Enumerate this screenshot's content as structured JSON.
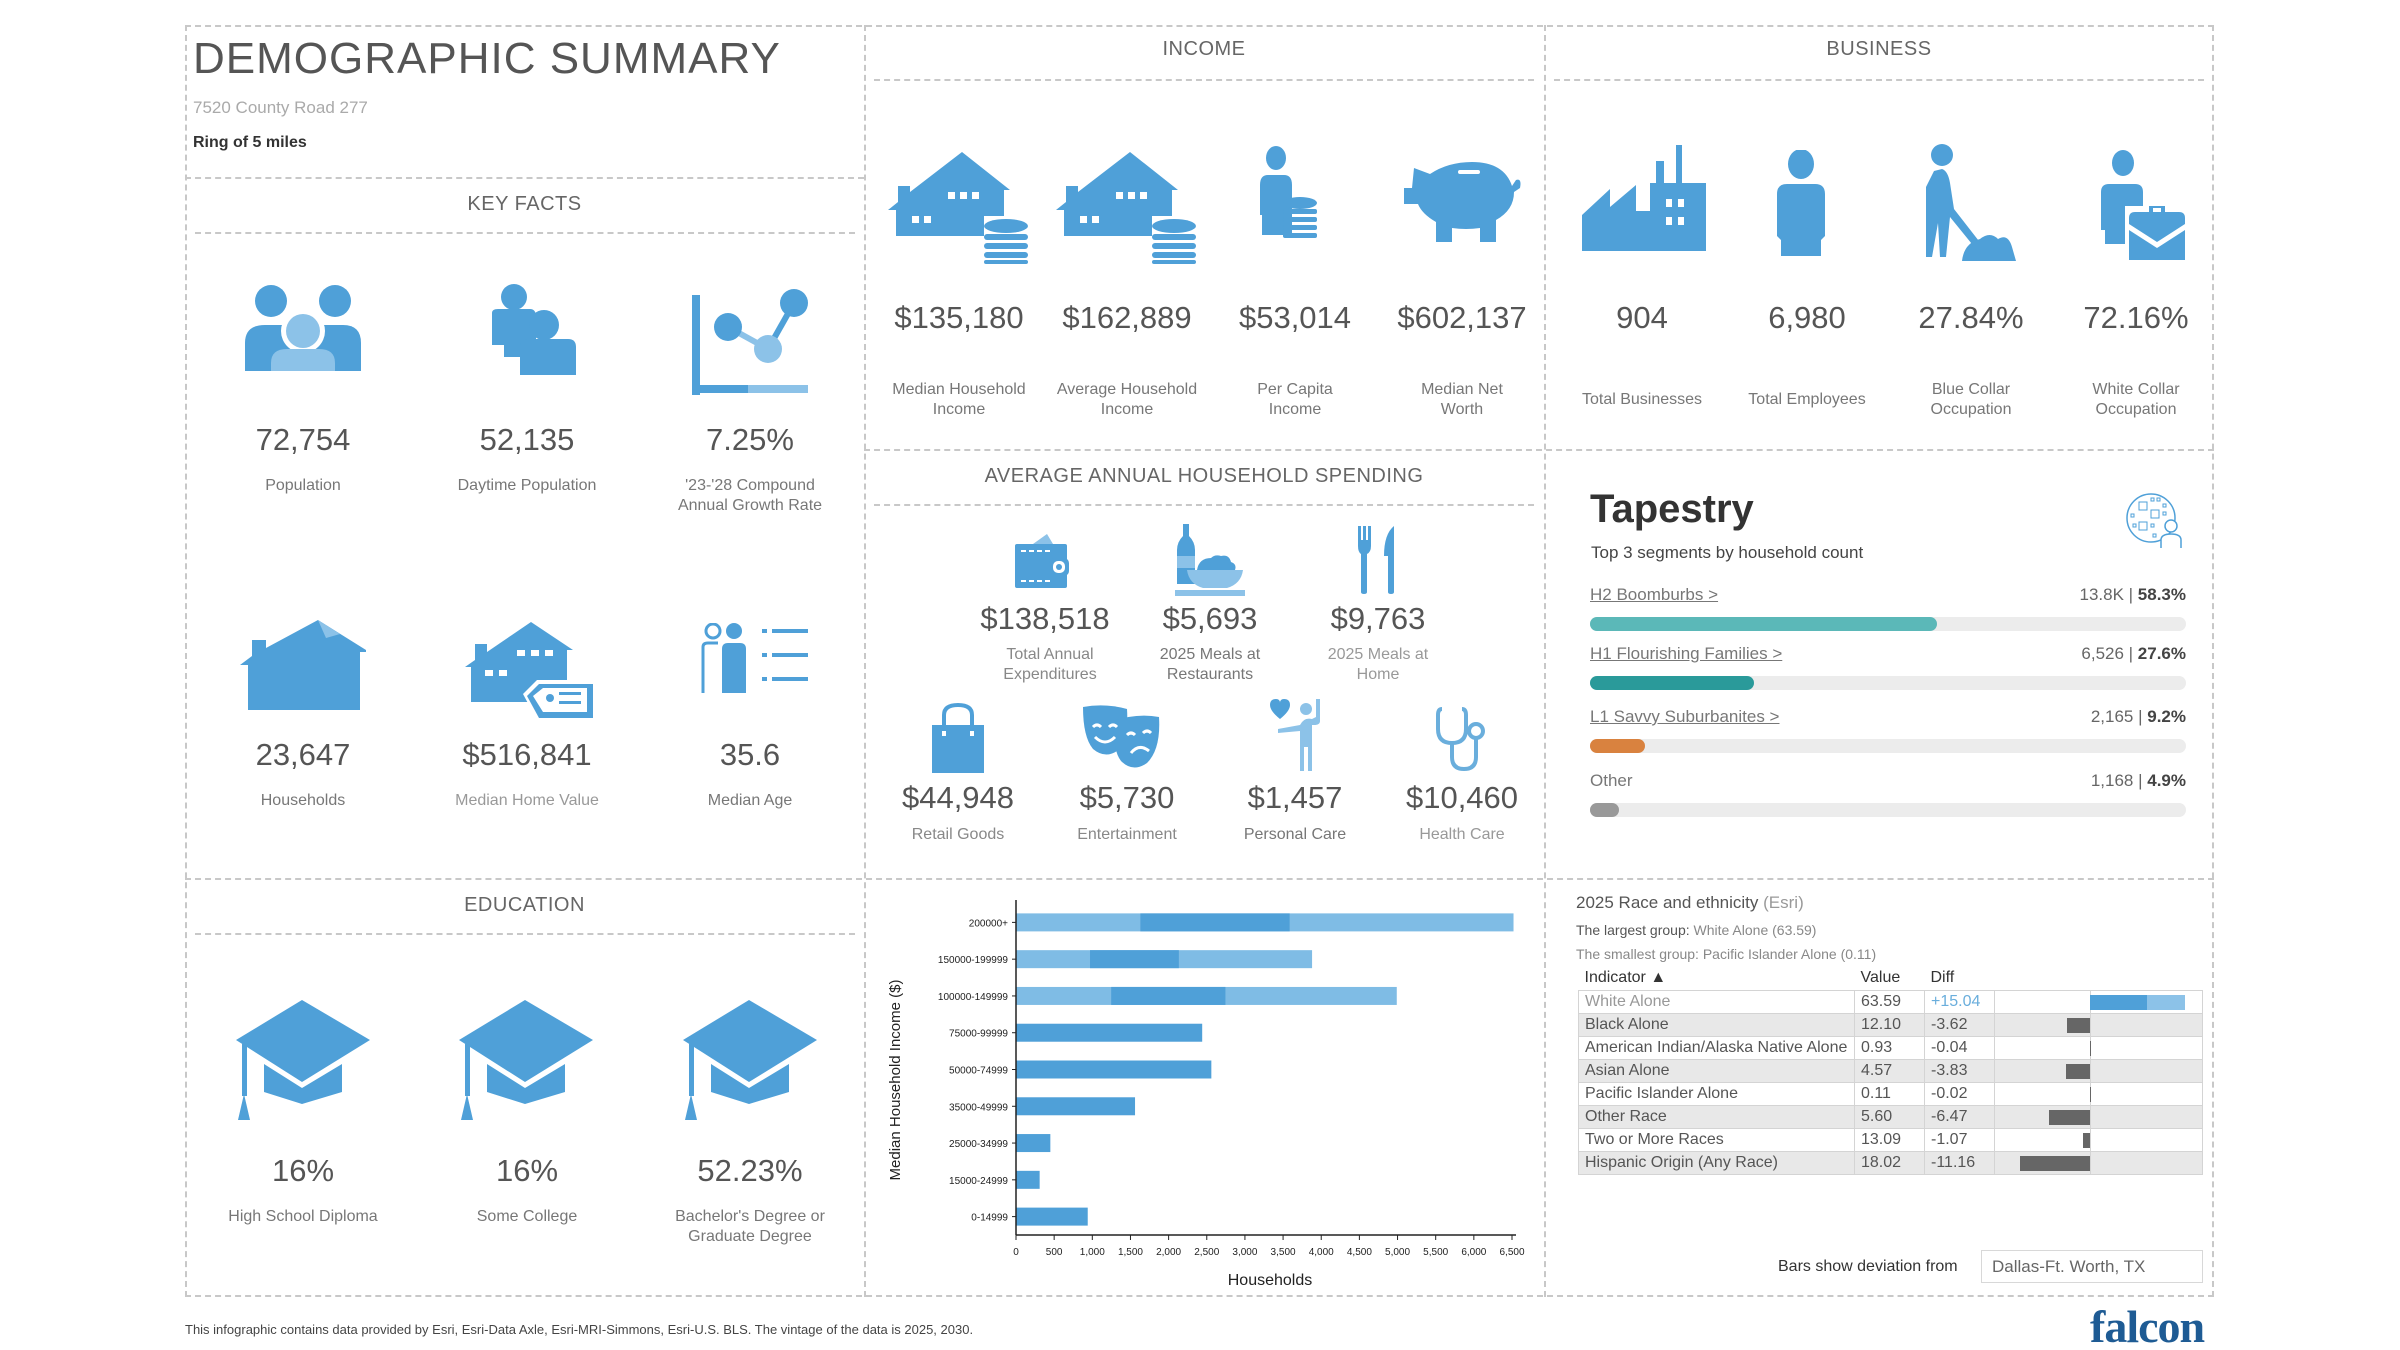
{
  "header": {
    "title": "DEMOGRAPHIC SUMMARY",
    "address": "7520 County Road 277",
    "ring": "Ring of 5 miles"
  },
  "key_facts": {
    "title": "KEY FACTS",
    "items": [
      {
        "icon": "population-icon",
        "value": "72,754",
        "label": "Population"
      },
      {
        "icon": "daytime-population-icon",
        "value": "52,135",
        "label": "Daytime Population"
      },
      {
        "icon": "growth-chart-icon",
        "value": "7.25%",
        "label": "'23-'28 Compound Annual Growth Rate"
      },
      {
        "icon": "house-icon",
        "value": "23,647",
        "label": "Households"
      },
      {
        "icon": "home-value-icon",
        "value": "$516,841",
        "label": "Median Home Value"
      },
      {
        "icon": "median-age-icon",
        "value": "35.6",
        "label": "Median Age"
      }
    ]
  },
  "income": {
    "title": "INCOME",
    "items": [
      {
        "icon": "house-coins-icon",
        "value": "$135,180",
        "label": "Median Household Income"
      },
      {
        "icon": "house-coins-icon",
        "value": "$162,889",
        "label": "Average Household Income"
      },
      {
        "icon": "person-coins-icon",
        "value": "$53,014",
        "label": "Per Capita Income"
      },
      {
        "icon": "piggy-bank-icon",
        "value": "$602,137",
        "label": "Median Net Worth"
      }
    ]
  },
  "business": {
    "title": "BUSINESS",
    "items": [
      {
        "icon": "factory-icon",
        "value": "904",
        "label": "Total Businesses"
      },
      {
        "icon": "employee-icon",
        "value": "6,980",
        "label": "Total Employees"
      },
      {
        "icon": "blue-collar-icon",
        "value": "27.84%",
        "label": "Blue Collar Occupation"
      },
      {
        "icon": "white-collar-icon",
        "value": "72.16%",
        "label": "White Collar Occupation"
      }
    ]
  },
  "spending": {
    "title": "AVERAGE ANNUAL HOUSEHOLD SPENDING",
    "items": [
      {
        "icon": "wallet-icon",
        "value": "$138,518",
        "label": "Total Annual Expenditures"
      },
      {
        "icon": "restaurant-meal-icon",
        "value": "$5,693",
        "label": "2025 Meals at Restaurants"
      },
      {
        "icon": "fork-knife-icon",
        "value": "$9,763",
        "label": "2025 Meals at Home"
      },
      {
        "icon": "shopping-bag-icon",
        "value": "$44,948",
        "label": "Retail Goods"
      },
      {
        "icon": "theater-masks-icon",
        "value": "$5,730",
        "label": "Entertainment"
      },
      {
        "icon": "personal-care-icon",
        "value": "$1,457",
        "label": "Personal Care"
      },
      {
        "icon": "stethoscope-icon",
        "value": "$10,460",
        "label": "Health Care"
      }
    ]
  },
  "tapestry": {
    "title": "Tapestry",
    "subtitle": "Top 3 segments by household count",
    "segments": [
      {
        "name": "H2 Boomburbs >",
        "count": "13.8K",
        "pct": "58.3%",
        "share": 58.3,
        "color": "#5bb8b8",
        "link": true
      },
      {
        "name": "H1 Flourishing Families >",
        "count": "6,526",
        "pct": "27.6%",
        "share": 27.6,
        "color": "#2a9a9a",
        "link": true
      },
      {
        "name": "L1 Savvy Suburbanites >",
        "count": "2,165",
        "pct": "9.2%",
        "share": 9.2,
        "color": "#d9823f",
        "link": true
      },
      {
        "name": "Other",
        "count": "1,168",
        "pct": "4.9%",
        "share": 4.9,
        "color": "#999999",
        "link": false
      }
    ]
  },
  "education": {
    "title": "EDUCATION",
    "items": [
      {
        "value": "16%",
        "label": "High School Diploma"
      },
      {
        "value": "16%",
        "label": "Some College"
      },
      {
        "value": "52.23%",
        "label": "Bachelor's Degree or Graduate Degree"
      }
    ]
  },
  "chart_data": {
    "type": "bar",
    "orientation": "horizontal",
    "title": "",
    "xlabel": "Households",
    "ylabel": "Median Household Income ($)",
    "categories": [
      "200000+",
      "150000-199999",
      "100000-149999",
      "75000-99999",
      "50000-74999",
      "35000-49999",
      "25000-34999",
      "15000-24999",
      "0-14999"
    ],
    "values": [
      6520,
      3880,
      4990,
      2440,
      2560,
      1560,
      450,
      310,
      940
    ],
    "xlim": [
      0,
      6500
    ],
    "xticks": [
      "0",
      "500",
      "1,000",
      "1,500",
      "2,000",
      "2,500",
      "3,000",
      "3,500",
      "4,000",
      "4,500",
      "5,000",
      "5,500",
      "6,000",
      "6,500"
    ],
    "grid": false,
    "color": "#4fa0d8"
  },
  "race": {
    "title": "2025 Race and ethnicity",
    "source": "(Esri)",
    "largest_prefix": "The largest group:",
    "largest": "White Alone (63.59)",
    "smallest_prefix": "The smallest group:",
    "smallest": "Pacific Islander Alone (0.11)",
    "columns": [
      "Indicator ▲",
      "Value",
      "Diff"
    ],
    "rows": [
      {
        "indicator": "White Alone",
        "value": "63.59",
        "diff": "+15.04",
        "d": 15.04
      },
      {
        "indicator": "Black Alone",
        "value": "12.10",
        "diff": "-3.62",
        "d": -3.62
      },
      {
        "indicator": "American Indian/Alaska Native Alone",
        "value": "0.93",
        "diff": "-0.04",
        "d": -0.04
      },
      {
        "indicator": "Asian Alone",
        "value": "4.57",
        "diff": "-3.83",
        "d": -3.83
      },
      {
        "indicator": "Pacific Islander Alone",
        "value": "0.11",
        "diff": "-0.02",
        "d": -0.02
      },
      {
        "indicator": "Other Race",
        "value": "5.60",
        "diff": "-6.47",
        "d": -6.47
      },
      {
        "indicator": "Two or More Races",
        "value": "13.09",
        "diff": "-1.07",
        "d": -1.07
      },
      {
        "indicator": "Hispanic Origin (Any Race)",
        "value": "18.02",
        "diff": "-11.16",
        "d": -11.16
      }
    ],
    "deviation_label": "Bars show deviation from",
    "deviation_area": "Dallas-Ft. Worth, TX"
  },
  "footer": {
    "note": "This infographic contains data provided by Esri, Esri-Data Axle, Esri-MRI-Simmons, Esri-U.S. BLS. The vintage of the data is 2025, 2030.",
    "logo": "falcon"
  }
}
